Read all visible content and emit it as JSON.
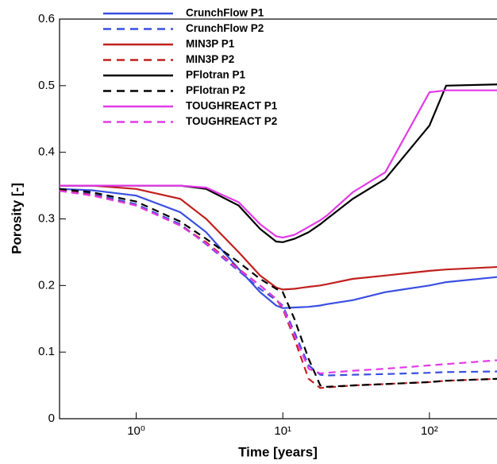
{
  "chart_data": {
    "type": "line",
    "x_label": "Time [years]",
    "y_label": "Porosity [-]",
    "x_log": true,
    "legend": "upper left",
    "x": [
      0.3,
      0.5,
      1,
      2,
      3,
      5,
      7,
      9,
      10,
      12,
      15,
      18,
      20,
      30,
      50,
      100,
      130,
      300
    ],
    "xlim": [
      0.3,
      300
    ],
    "xticks": [
      {
        "value": 1,
        "label": "10⁰"
      },
      {
        "value": 10,
        "label": "10¹"
      },
      {
        "value": 100,
        "label": "10²"
      }
    ],
    "ylim": [
      0,
      0.6
    ],
    "yticks": [
      0,
      0.1,
      0.2,
      0.3,
      0.4,
      0.5,
      0.6
    ],
    "series": [
      {
        "name": "CrunchFlow P1",
        "color": "#3a4fe0",
        "dash": false,
        "values": [
          0.345,
          0.343,
          0.335,
          0.31,
          0.28,
          0.225,
          0.19,
          0.17,
          0.166,
          0.167,
          0.168,
          0.17,
          0.172,
          0.178,
          0.19,
          0.2,
          0.205,
          0.213
        ]
      },
      {
        "name": "CrunchFlow P2",
        "color": "#3a4fe0",
        "dash": true,
        "values": [
          0.343,
          0.338,
          0.322,
          0.292,
          0.262,
          0.222,
          0.195,
          0.178,
          0.17,
          0.13,
          0.08,
          0.066,
          0.065,
          0.066,
          0.067,
          0.069,
          0.07,
          0.071
        ]
      },
      {
        "name": "MIN3P P1",
        "color": "#c0201e",
        "dash": false,
        "values": [
          0.35,
          0.35,
          0.345,
          0.33,
          0.3,
          0.25,
          0.215,
          0.197,
          0.194,
          0.195,
          0.198,
          0.2,
          0.202,
          0.21,
          0.215,
          0.222,
          0.224,
          0.228
        ]
      },
      {
        "name": "MIN3P P2",
        "color": "#c0201e",
        "dash": true,
        "values": [
          0.343,
          0.336,
          0.32,
          0.29,
          0.265,
          0.225,
          0.2,
          0.18,
          0.165,
          0.12,
          0.06,
          0.046,
          0.047,
          0.05,
          0.052,
          0.055,
          0.057,
          0.06
        ]
      },
      {
        "name": "PFlotran P1",
        "color": "#000000",
        "dash": false,
        "values": [
          0.35,
          0.35,
          0.35,
          0.35,
          0.345,
          0.32,
          0.285,
          0.266,
          0.265,
          0.27,
          0.28,
          0.292,
          0.3,
          0.33,
          0.36,
          0.44,
          0.5,
          0.502
        ]
      },
      {
        "name": "PFlotran P2",
        "color": "#000000",
        "dash": true,
        "values": [
          0.345,
          0.34,
          0.326,
          0.296,
          0.27,
          0.235,
          0.21,
          0.195,
          0.19,
          0.15,
          0.09,
          0.05,
          0.048,
          0.05,
          0.052,
          0.055,
          0.057,
          0.06
        ]
      },
      {
        "name": "TOUGHREACT P1",
        "color": "#e23ae6",
        "dash": false,
        "values": [
          0.35,
          0.35,
          0.35,
          0.35,
          0.347,
          0.325,
          0.292,
          0.274,
          0.272,
          0.276,
          0.288,
          0.298,
          0.305,
          0.34,
          0.37,
          0.49,
          0.493,
          0.493
        ]
      },
      {
        "name": "TOUGHREACT P2",
        "color": "#e23ae6",
        "dash": true,
        "values": [
          0.342,
          0.335,
          0.32,
          0.29,
          0.263,
          0.224,
          0.2,
          0.18,
          0.167,
          0.125,
          0.075,
          0.068,
          0.069,
          0.072,
          0.075,
          0.08,
          0.082,
          0.088
        ]
      }
    ]
  }
}
